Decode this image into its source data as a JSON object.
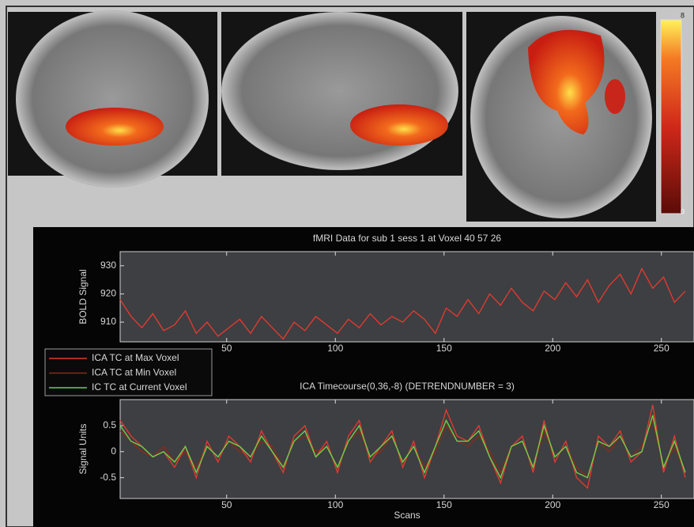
{
  "colorbar": {
    "max_label": "8",
    "min_label": "0"
  },
  "chart_data": [
    {
      "type": "line",
      "title": "fMRI Data for sub 1 sess 1 at Voxel 40  57  26",
      "y_label": "BOLD Signal",
      "x": [
        1,
        6,
        11,
        16,
        21,
        26,
        31,
        36,
        41,
        46,
        51,
        56,
        61,
        66,
        71,
        76,
        81,
        86,
        91,
        96,
        101,
        106,
        111,
        116,
        121,
        126,
        131,
        136,
        141,
        146,
        151,
        156,
        161,
        166,
        171,
        176,
        181,
        186,
        191,
        196,
        201,
        206,
        211,
        216,
        221,
        226,
        231,
        236,
        241,
        246,
        251,
        256,
        261
      ],
      "series": [
        {
          "color": "#e03a30",
          "values": [
            918,
            912,
            908,
            913,
            907,
            909,
            914,
            906,
            910,
            905,
            908,
            911,
            906,
            912,
            908,
            904,
            910,
            907,
            912,
            909,
            906,
            911,
            908,
            913,
            909,
            912,
            910,
            914,
            911,
            906,
            915,
            912,
            918,
            913,
            920,
            916,
            922,
            917,
            914,
            921,
            918,
            924,
            919,
            925,
            917,
            923,
            927,
            920,
            929,
            922,
            926,
            917,
            921
          ]
        }
      ],
      "xlim": [
        1,
        265
      ],
      "ylim": [
        903,
        935
      ],
      "xticks": [
        50,
        100,
        150,
        200,
        250
      ],
      "yticks": [
        910,
        920,
        930
      ]
    },
    {
      "type": "line",
      "title": "ICA Timecourse(0,36,-8) (DETRENDNUMBER = 3)",
      "y_label": "Signal Units",
      "x_label": "Scans",
      "x": [
        1,
        6,
        11,
        16,
        21,
        26,
        31,
        36,
        41,
        46,
        51,
        56,
        61,
        66,
        71,
        76,
        81,
        86,
        91,
        96,
        101,
        106,
        111,
        116,
        121,
        126,
        131,
        136,
        141,
        146,
        151,
        156,
        161,
        166,
        171,
        176,
        181,
        186,
        191,
        196,
        201,
        206,
        211,
        216,
        221,
        226,
        231,
        236,
        241,
        246,
        251,
        256,
        261
      ],
      "series": [
        {
          "name": "ICA TC at Min Voxel",
          "color": "#8a2a1c",
          "values": [
            0.4,
            0.2,
            0.0,
            -0.1,
            0.1,
            -0.2,
            0.0,
            -0.3,
            0.1,
            -0.1,
            0.2,
            0.0,
            -0.1,
            0.2,
            0.1,
            -0.3,
            0.2,
            0.3,
            0.0,
            0.1,
            -0.3,
            0.2,
            0.4,
            -0.1,
            0.0,
            0.3,
            -0.2,
            0.1,
            -0.3,
            0.0,
            0.5,
            0.2,
            0.1,
            0.3,
            0.0,
            -0.4,
            0.1,
            0.2,
            -0.3,
            0.4,
            -0.1,
            0.1,
            -0.3,
            -0.5,
            0.2,
            0.0,
            0.3,
            -0.1,
            0.1,
            0.6,
            -0.3,
            0.1,
            -0.4
          ]
        },
        {
          "name": "ICA TC at Max Voxel",
          "color": "#e03a30",
          "values": [
            0.6,
            0.3,
            0.1,
            -0.1,
            0.0,
            -0.3,
            0.1,
            -0.5,
            0.2,
            -0.2,
            0.3,
            0.1,
            -0.2,
            0.4,
            0.0,
            -0.4,
            0.3,
            0.5,
            -0.1,
            0.2,
            -0.4,
            0.3,
            0.6,
            -0.2,
            0.1,
            0.4,
            -0.3,
            0.2,
            -0.5,
            0.1,
            0.8,
            0.3,
            0.2,
            0.5,
            -0.1,
            -0.6,
            0.1,
            0.3,
            -0.4,
            0.6,
            -0.2,
            0.2,
            -0.5,
            -0.7,
            0.3,
            0.1,
            0.4,
            -0.2,
            0.0,
            0.9,
            -0.4,
            0.3,
            -0.5
          ]
        },
        {
          "name": "IC TC at Current Voxel",
          "color": "#6fd04a",
          "values": [
            0.5,
            0.2,
            0.1,
            -0.1,
            0.0,
            -0.2,
            0.1,
            -0.4,
            0.1,
            -0.1,
            0.2,
            0.1,
            -0.1,
            0.3,
            0.0,
            -0.3,
            0.2,
            0.4,
            -0.1,
            0.1,
            -0.3,
            0.2,
            0.5,
            -0.1,
            0.1,
            0.3,
            -0.2,
            0.1,
            -0.4,
            0.1,
            0.6,
            0.2,
            0.2,
            0.4,
            -0.1,
            -0.5,
            0.1,
            0.2,
            -0.3,
            0.5,
            -0.1,
            0.1,
            -0.4,
            -0.5,
            0.2,
            0.1,
            0.3,
            -0.1,
            0.0,
            0.7,
            -0.3,
            0.2,
            -0.4
          ]
        }
      ],
      "legend_order": [
        1,
        0,
        2
      ],
      "xlim": [
        1,
        265
      ],
      "ylim": [
        -0.9,
        1.0
      ],
      "xticks": [
        50,
        100,
        150,
        200,
        250
      ],
      "yticks": [
        -0.5,
        0,
        0.5
      ]
    }
  ]
}
